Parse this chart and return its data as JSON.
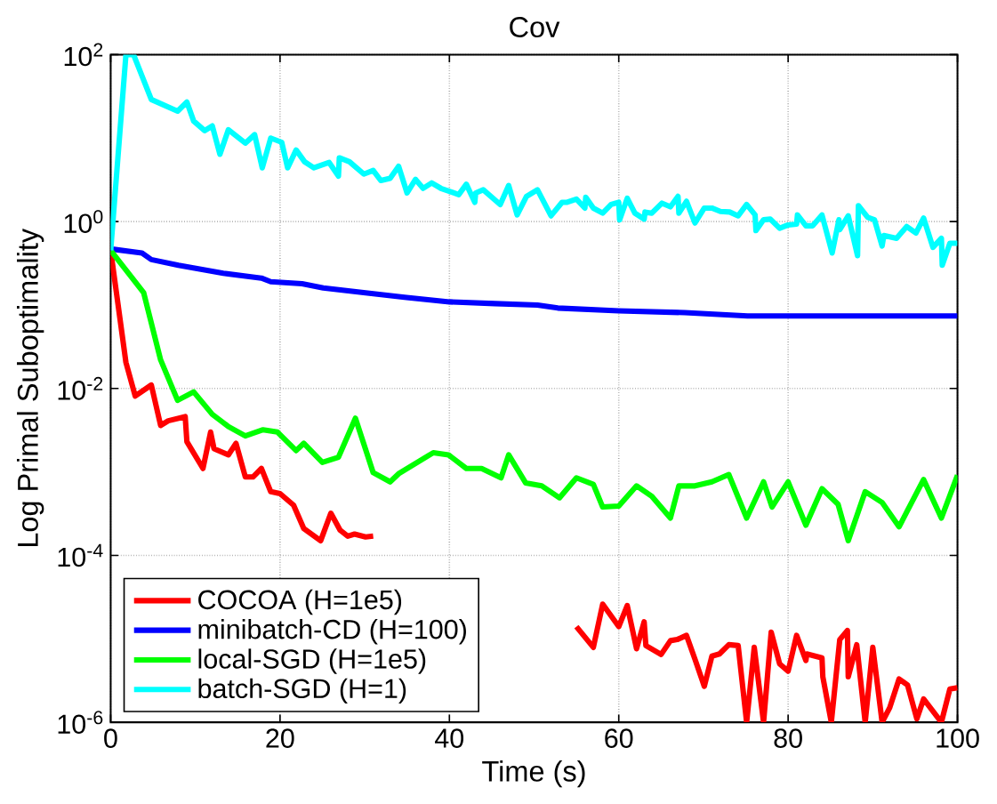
{
  "chart_data": {
    "type": "line",
    "title": "Cov",
    "xlabel": "Time (s)",
    "ylabel": "Log Primal Suboptimality",
    "log": "y",
    "grid": true,
    "legend": "bottom left",
    "line_style": "solid",
    "marker": "none",
    "xlim": [
      0,
      100
    ],
    "xticks": [
      0,
      20,
      40,
      60,
      80,
      100
    ],
    "ylim": [
      1e-06,
      100
    ],
    "yticks": [
      {
        "value": 1e-06,
        "label": "10$^{-6}$"
      },
      {
        "value": 0.0001,
        "label": "10$^{-4}$"
      },
      {
        "value": 0.01,
        "label": "10$^{-2}$"
      },
      {
        "value": 1,
        "label": "10$^{0}$"
      },
      {
        "value": 100,
        "label": "10$^{2}$"
      }
    ],
    "series": [
      {
        "name": "COCOA (H=1e5)",
        "color": "#ff0000",
        "x": [
          0,
          1.8,
          2.9,
          4.8,
          5.9,
          6.8,
          8.8,
          9.0,
          10.9,
          11.8,
          12.2,
          13.9,
          14.8,
          15.9,
          16.8,
          17.8,
          18.9,
          20,
          21.6,
          22.8,
          24.8,
          26,
          27.1,
          28,
          28.8,
          30.1,
          31,
          43,
          55,
          57,
          58.1,
          60,
          61,
          62.1,
          63,
          63.2,
          65,
          66.1,
          66.9,
          68,
          69,
          70.1,
          71,
          71.9,
          73,
          74.1,
          75.1,
          76,
          77.1,
          78,
          79,
          80,
          81,
          82.1,
          82.2,
          84,
          84.1,
          85.1,
          86.1,
          87,
          87.1,
          88.1,
          89.1,
          90,
          91.1,
          92,
          93.1,
          94.1,
          95.2,
          96,
          98.1,
          99.1,
          100
        ],
        "values": [
          0.45,
          0.0205,
          0.0081,
          0.011,
          0.0036,
          0.0041,
          0.0046,
          0.0023,
          0.0011,
          0.003,
          0.0019,
          0.0016,
          0.0022,
          0.00087,
          0.00087,
          0.0011,
          0.00058,
          0.00055,
          0.0004,
          0.00021,
          0.00015,
          0.00032,
          0.0002,
          0.00017,
          0.00018,
          0.000166,
          0.00017,
          null,
          1.4e-05,
          7.9e-06,
          2.6e-05,
          1.4e-05,
          2.5e-05,
          7.6e-06,
          1.6e-05,
          8.3e-06,
          6.5e-06,
          9.5e-06,
          9.8e-06,
          1.1e-05,
          5.7e-06,
          2.7e-06,
          6.2e-06,
          6.6e-06,
          8.5e-06,
          8.3e-06,
          1e-06,
          7.9e-06,
          1e-06,
          1.2e-05,
          5e-06,
          4.1e-06,
          1.1e-05,
          5.5e-06,
          6.6e-06,
          5.9e-06,
          3.5e-06,
          1e-06,
          9.8e-06,
          1.26e-05,
          3.5e-06,
          8.5e-06,
          1e-06,
          7.9e-06,
          1e-06,
          1.5e-06,
          3.3e-06,
          2.8e-06,
          1.1e-06,
          1.9e-06,
          1e-06,
          2.5e-06,
          2.6e-06
        ]
      },
      {
        "name": "minibatch-CD (H=100)",
        "color": "#0000ff",
        "x": [
          0,
          3.7,
          4.8,
          8,
          13.3,
          17.8,
          18.9,
          22.6,
          25.1,
          30.1,
          34.7,
          40,
          45.4,
          50.4,
          52.8,
          60,
          67.8,
          75.2,
          100
        ],
        "values": [
          0.47,
          0.42,
          0.35,
          0.3,
          0.24,
          0.21,
          0.19,
          0.18,
          0.16,
          0.14,
          0.124,
          0.109,
          0.104,
          0.1,
          0.092,
          0.085,
          0.081,
          0.074,
          0.074
        ]
      },
      {
        "name": "local-SGD (H=1e5)",
        "color": "#00ff00",
        "x": [
          0,
          3.9,
          5.9,
          7.9,
          9.8,
          12,
          13.9,
          15.9,
          18,
          19.7,
          21.9,
          22.8,
          25,
          26.9,
          28.9,
          31,
          33,
          34,
          38.1,
          39.9,
          42,
          43.8,
          46.1,
          47,
          49,
          50.9,
          53,
          55,
          57,
          58.1,
          60,
          62.1,
          63.9,
          66.1,
          67.1,
          69,
          71,
          73,
          75.1,
          77.1,
          78.1,
          80,
          82.1,
          84,
          85.9,
          87.1,
          89.1,
          91.1,
          93.1,
          96,
          98.1,
          100
        ],
        "values": [
          0.45,
          0.14,
          0.022,
          0.0072,
          0.0091,
          0.0049,
          0.0035,
          0.0027,
          0.0032,
          0.003,
          0.0018,
          0.0022,
          0.0013,
          0.0015,
          0.0044,
          0.00098,
          0.00076,
          0.00095,
          0.0017,
          0.0016,
          0.0011,
          0.0011,
          0.00085,
          0.0016,
          0.00074,
          0.00068,
          0.00049,
          0.00085,
          0.00071,
          0.00038,
          0.00039,
          0.00068,
          0.00051,
          0.00028,
          0.00068,
          0.00068,
          0.00076,
          0.00093,
          0.00028,
          0.00076,
          0.00038,
          0.00076,
          0.00023,
          0.00063,
          0.00041,
          0.00015,
          0.00058,
          0.00043,
          0.00022,
          0.00081,
          0.00028,
          0.00091
        ]
      },
      {
        "name": "batch-SGD (H=1)",
        "color": "#00ffff",
        "x": [
          0,
          1.8,
          2.7,
          4.8,
          7.9,
          9,
          9.8,
          11.1,
          12,
          12.9,
          13.9,
          15.9,
          17,
          17.9,
          18.9,
          20.2,
          20.9,
          21.9,
          22.9,
          24,
          25.8,
          26.9,
          27,
          28.2,
          29.9,
          31,
          31.9,
          33,
          34,
          35,
          36,
          36.9,
          37.9,
          39,
          41.1,
          42,
          43,
          43.1,
          44,
          46,
          47,
          48,
          49.1,
          50.4,
          52,
          53.3,
          53.9,
          55,
          56,
          56.1,
          57,
          58.1,
          59.1,
          60,
          60.1,
          61,
          61.9,
          63,
          63.1,
          63.9,
          65.1,
          66.1,
          67,
          67.1,
          68,
          69,
          70.1,
          71,
          72,
          73.1,
          74.1,
          75.1,
          76.1,
          76.2,
          77.1,
          77.9,
          79,
          80,
          81,
          81.1,
          82.1,
          82.9,
          84,
          85.2,
          86,
          86.1,
          87.1,
          88.2,
          88.3,
          89.4,
          90.2,
          91.1,
          91.3,
          92.8,
          94,
          95.1,
          96,
          97.1,
          98.1,
          98.2,
          99.1,
          100
        ],
        "values": [
          0.45,
          100,
          100,
          29,
          21,
          27,
          16,
          12.3,
          14,
          6.4,
          12.6,
          8.7,
          11,
          4.4,
          10,
          8.9,
          4.4,
          7.2,
          5.2,
          4.4,
          5.1,
          3.5,
          5.8,
          5.2,
          3.7,
          4.1,
          3.1,
          3.3,
          4.6,
          2.2,
          3.2,
          2.5,
          2.9,
          2.5,
          2.1,
          2.8,
          1.7,
          2.2,
          2.4,
          1.6,
          2.7,
          1.2,
          2.0,
          2.4,
          1.17,
          1.7,
          1.7,
          1.86,
          1.45,
          1.95,
          1.45,
          1.26,
          1.6,
          1.7,
          1.05,
          1.9,
          1.26,
          1.07,
          1.3,
          1.26,
          1.66,
          1.5,
          2.0,
          1.26,
          1.75,
          0.96,
          1.45,
          1.45,
          1.32,
          1.3,
          1.17,
          1.6,
          1.2,
          0.78,
          1.05,
          1.07,
          0.83,
          0.91,
          0.93,
          1.2,
          0.89,
          0.89,
          1.2,
          0.42,
          1.05,
          0.8,
          1.17,
          0.39,
          1.55,
          1.12,
          1.05,
          0.51,
          0.68,
          0.63,
          0.87,
          0.73,
          1.1,
          0.49,
          0.63,
          0.3,
          0.55,
          0.55
        ]
      }
    ]
  }
}
